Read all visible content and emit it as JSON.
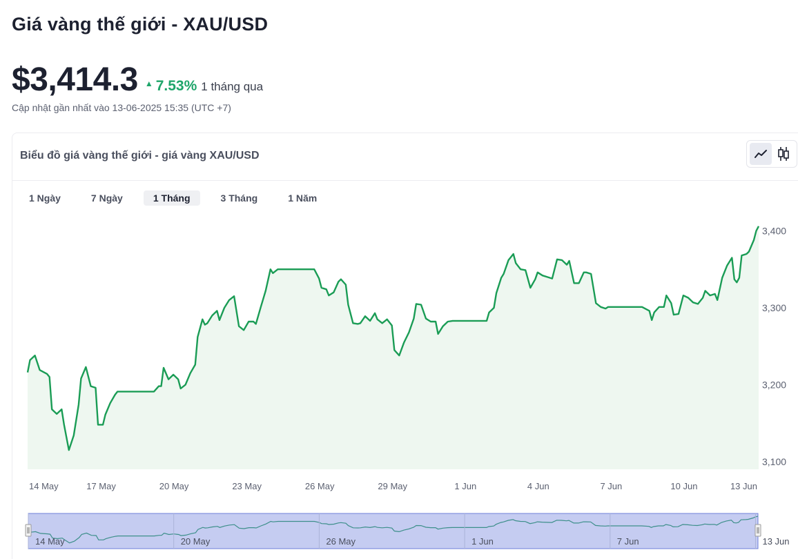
{
  "page": {
    "title": "Giá vàng thế giới - XAU/USD",
    "price": "$3,414.3",
    "change_pct": "7.53%",
    "change_period": "1 tháng qua",
    "updated": "Cập nhật gần nhất vào 13-06-2025 15:35 (UTC +7)"
  },
  "card": {
    "title": "Biểu đồ giá vàng thế giới - giá vàng XAU/USD",
    "chart_modes": [
      {
        "icon": "line-chart-icon",
        "active": true
      },
      {
        "icon": "candlestick-chart-icon",
        "active": false
      }
    ]
  },
  "tabs": [
    {
      "label": "1 Ngày",
      "active": false
    },
    {
      "label": "7 Ngày",
      "active": false
    },
    {
      "label": "1 Tháng",
      "active": true
    },
    {
      "label": "3 Tháng",
      "active": false
    },
    {
      "label": "1 Năm",
      "active": false
    }
  ],
  "colors": {
    "line": "#1a9c55",
    "area": "#eef7f0",
    "up": "#1ea56a",
    "navigator_fill": "#c5ccf1",
    "navigator_border": "#6e7fd9"
  },
  "chart_data": {
    "type": "line",
    "series_name": "XAU/USD",
    "x_ticks": [
      "14 May",
      "17 May",
      "20 May",
      "23 May",
      "26 May",
      "29 May",
      "1 Jun",
      "4 Jun",
      "7 Jun",
      "10 Jun",
      "13 Jun"
    ],
    "x_range": [
      0,
      29.7
    ],
    "y_ticks": [
      3100,
      3200,
      3300,
      3400
    ],
    "y_range": [
      3090,
      3422
    ],
    "grid": false,
    "navigator": {
      "x_ticks": [
        "14 May",
        "20 May",
        "26 May",
        "1 Jun",
        "7 Jun",
        "13 Jun"
      ]
    },
    "points": [
      [
        0.0,
        3216
      ],
      [
        0.1,
        3232
      ],
      [
        0.3,
        3238
      ],
      [
        0.5,
        3219
      ],
      [
        0.8,
        3214
      ],
      [
        0.9,
        3210
      ],
      [
        1.0,
        3168
      ],
      [
        1.2,
        3162
      ],
      [
        1.4,
        3168
      ],
      [
        1.5,
        3148
      ],
      [
        1.7,
        3115
      ],
      [
        1.9,
        3134
      ],
      [
        2.1,
        3174
      ],
      [
        2.2,
        3208
      ],
      [
        2.4,
        3223
      ],
      [
        2.6,
        3198
      ],
      [
        2.8,
        3196
      ],
      [
        2.9,
        3148
      ],
      [
        3.1,
        3148
      ],
      [
        3.2,
        3161
      ],
      [
        3.4,
        3176
      ],
      [
        3.6,
        3187
      ],
      [
        3.7,
        3191
      ],
      [
        4.0,
        3191
      ],
      [
        4.5,
        3191
      ],
      [
        5.0,
        3191
      ],
      [
        5.1,
        3191
      ],
      [
        5.2,
        3191
      ],
      [
        5.4,
        3198
      ],
      [
        5.5,
        3198
      ],
      [
        5.6,
        3222
      ],
      [
        5.8,
        3207
      ],
      [
        6.0,
        3213
      ],
      [
        6.2,
        3207
      ],
      [
        6.3,
        3195
      ],
      [
        6.5,
        3200
      ],
      [
        6.7,
        3215
      ],
      [
        6.9,
        3226
      ],
      [
        7.0,
        3262
      ],
      [
        7.2,
        3285
      ],
      [
        7.3,
        3278
      ],
      [
        7.4,
        3280
      ],
      [
        7.6,
        3290
      ],
      [
        7.8,
        3296
      ],
      [
        7.9,
        3284
      ],
      [
        8.1,
        3300
      ],
      [
        8.3,
        3310
      ],
      [
        8.5,
        3315
      ],
      [
        8.7,
        3276
      ],
      [
        8.9,
        3271
      ],
      [
        9.1,
        3282
      ],
      [
        9.3,
        3282
      ],
      [
        9.4,
        3279
      ],
      [
        9.6,
        3301
      ],
      [
        9.8,
        3322
      ],
      [
        10.0,
        3350
      ],
      [
        10.1,
        3345
      ],
      [
        10.3,
        3350
      ],
      [
        10.6,
        3350
      ],
      [
        11.0,
        3350
      ],
      [
        11.5,
        3350
      ],
      [
        11.8,
        3350
      ],
      [
        12.0,
        3338
      ],
      [
        12.1,
        3326
      ],
      [
        12.3,
        3324
      ],
      [
        12.4,
        3316
      ],
      [
        12.6,
        3320
      ],
      [
        12.8,
        3334
      ],
      [
        12.9,
        3337
      ],
      [
        13.1,
        3330
      ],
      [
        13.2,
        3304
      ],
      [
        13.4,
        3280
      ],
      [
        13.6,
        3279
      ],
      [
        13.7,
        3280
      ],
      [
        13.9,
        3289
      ],
      [
        14.1,
        3283
      ],
      [
        14.3,
        3293
      ],
      [
        14.4,
        3285
      ],
      [
        14.6,
        3280
      ],
      [
        14.8,
        3285
      ],
      [
        15.0,
        3277
      ],
      [
        15.1,
        3245
      ],
      [
        15.3,
        3238
      ],
      [
        15.5,
        3255
      ],
      [
        15.7,
        3268
      ],
      [
        15.9,
        3286
      ],
      [
        16.0,
        3305
      ],
      [
        16.2,
        3304
      ],
      [
        16.4,
        3286
      ],
      [
        16.6,
        3282
      ],
      [
        16.8,
        3282
      ],
      [
        16.9,
        3266
      ],
      [
        17.1,
        3276
      ],
      [
        17.3,
        3282
      ],
      [
        17.5,
        3283
      ],
      [
        17.8,
        3283
      ],
      [
        18.2,
        3283
      ],
      [
        18.6,
        3283
      ],
      [
        18.9,
        3283
      ],
      [
        19.0,
        3294
      ],
      [
        19.2,
        3300
      ],
      [
        19.3,
        3319
      ],
      [
        19.5,
        3339
      ],
      [
        19.6,
        3344
      ],
      [
        19.8,
        3362
      ],
      [
        20.0,
        3370
      ],
      [
        20.1,
        3358
      ],
      [
        20.3,
        3350
      ],
      [
        20.5,
        3349
      ],
      [
        20.7,
        3326
      ],
      [
        20.9,
        3337
      ],
      [
        21.0,
        3346
      ],
      [
        21.2,
        3342
      ],
      [
        21.4,
        3340
      ],
      [
        21.6,
        3338
      ],
      [
        21.8,
        3363
      ],
      [
        22.0,
        3362
      ],
      [
        22.2,
        3356
      ],
      [
        22.3,
        3361
      ],
      [
        22.5,
        3332
      ],
      [
        22.7,
        3332
      ],
      [
        22.9,
        3346
      ],
      [
        23.0,
        3346
      ],
      [
        23.2,
        3344
      ],
      [
        23.4,
        3306
      ],
      [
        23.6,
        3301
      ],
      [
        23.8,
        3299
      ],
      [
        23.9,
        3301
      ],
      [
        24.1,
        3301
      ],
      [
        24.5,
        3301
      ],
      [
        25.0,
        3301
      ],
      [
        25.3,
        3301
      ],
      [
        25.6,
        3296
      ],
      [
        25.7,
        3284
      ],
      [
        25.8,
        3294
      ],
      [
        26.0,
        3301
      ],
      [
        26.2,
        3301
      ],
      [
        26.3,
        3316
      ],
      [
        26.5,
        3306
      ],
      [
        26.6,
        3291
      ],
      [
        26.8,
        3292
      ],
      [
        27.0,
        3316
      ],
      [
        27.2,
        3313
      ],
      [
        27.4,
        3307
      ],
      [
        27.6,
        3305
      ],
      [
        27.8,
        3313
      ],
      [
        27.9,
        3322
      ],
      [
        28.1,
        3316
      ],
      [
        28.3,
        3318
      ],
      [
        28.4,
        3310
      ],
      [
        28.6,
        3339
      ],
      [
        28.8,
        3355
      ],
      [
        29.0,
        3365
      ],
      [
        29.1,
        3337
      ],
      [
        29.2,
        3333
      ],
      [
        29.3,
        3339
      ],
      [
        29.4,
        3368
      ],
      [
        29.6,
        3370
      ],
      [
        29.7,
        3373
      ],
      [
        29.9,
        3388
      ],
      [
        30.0,
        3400
      ],
      [
        30.1,
        3406
      ]
    ]
  }
}
